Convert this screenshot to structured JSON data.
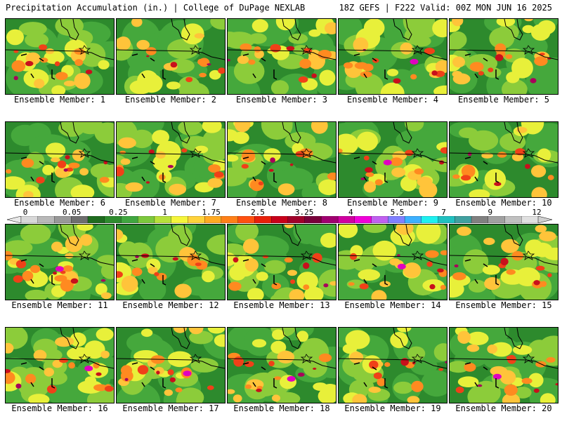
{
  "header": {
    "left": "Precipitation Accumulation (in.) | College of DuPage NEXLAB",
    "right": "18Z GEFS | F222 Valid: 00Z MON JUN 16 2025"
  },
  "colorbar": {
    "tick_labels": [
      "0",
      "0.05",
      "0.25",
      "1",
      "1.75",
      "2.5",
      "3.25",
      "4",
      "5.5",
      "7",
      "9",
      "12"
    ],
    "colors": [
      "#d8d8d8",
      "#b8b8b8",
      "#989898",
      "#6e6e6e",
      "#1f6b1f",
      "#2e8b2e",
      "#40a640",
      "#7cc83c",
      "#b8e03a",
      "#f5f53a",
      "#ffd23a",
      "#ffaa22",
      "#ff8018",
      "#ff5010",
      "#e8200a",
      "#c8001a",
      "#a0002a",
      "#78003a",
      "#a00070",
      "#d000a0",
      "#f000d8",
      "#c060f0",
      "#8080ff",
      "#3cb0ff",
      "#1ef0f0",
      "#20c0c0",
      "#40a0a0",
      "#808080",
      "#a0a0a0",
      "#c0c0c0",
      "#e0e0e0"
    ]
  },
  "members": [
    {
      "label": "Ensemble Member: 1",
      "level": 0.55
    },
    {
      "label": "Ensemble Member: 2",
      "level": 0.35
    },
    {
      "label": "Ensemble Member: 3",
      "level": 0.55
    },
    {
      "label": "Ensemble Member: 4",
      "level": 0.65
    },
    {
      "label": "Ensemble Member: 5",
      "level": 0.55
    },
    {
      "label": "Ensemble Member: 6",
      "level": 0.45
    },
    {
      "label": "Ensemble Member: 7",
      "level": 0.55
    },
    {
      "label": "Ensemble Member: 8",
      "level": 0.45
    },
    {
      "label": "Ensemble Member: 9",
      "level": 0.6
    },
    {
      "label": "Ensemble Member: 10",
      "level": 0.35
    },
    {
      "label": "Ensemble Member: 11",
      "level": 0.7
    },
    {
      "label": "Ensemble Member: 12",
      "level": 0.45
    },
    {
      "label": "Ensemble Member: 13",
      "level": 0.55
    },
    {
      "label": "Ensemble Member: 14",
      "level": 0.65
    },
    {
      "label": "Ensemble Member: 15",
      "level": 0.55
    },
    {
      "label": "Ensemble Member: 16",
      "level": 0.7
    },
    {
      "label": "Ensemble Member: 17",
      "level": 0.6
    },
    {
      "label": "Ensemble Member: 18",
      "level": 0.6
    },
    {
      "label": "Ensemble Member: 19",
      "level": 0.45
    },
    {
      "label": "Ensemble Member: 20",
      "level": 0.65
    }
  ]
}
